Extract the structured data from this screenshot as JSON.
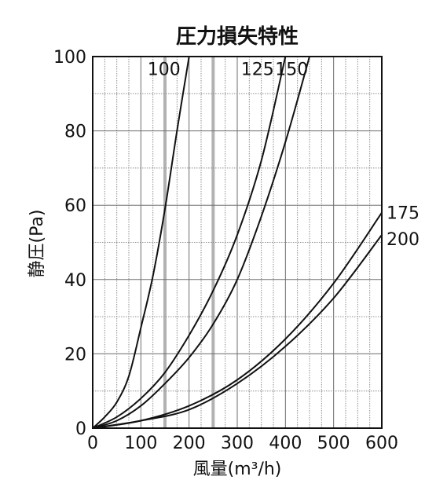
{
  "chart_data": {
    "type": "line",
    "title": "圧力損失特性",
    "xlabel": "風量(m³/h)",
    "ylabel": "静圧(Pa)",
    "xlim": [
      0,
      600
    ],
    "ylim": [
      0,
      100
    ],
    "xticks": [
      "0",
      "100",
      "200",
      "300",
      "400",
      "500",
      "600"
    ],
    "yticks": [
      "0",
      "20",
      "40",
      "60",
      "80",
      "100"
    ],
    "grid": true,
    "series": [
      {
        "name": "100",
        "x": [
          0,
          25,
          50,
          75,
          100,
          125,
          150,
          175,
          200
        ],
        "y": [
          0,
          3,
          7,
          14,
          27,
          41,
          59,
          80,
          100
        ]
      },
      {
        "name": "125",
        "x": [
          0,
          50,
          100,
          150,
          200,
          250,
          300,
          350,
          400
        ],
        "y": [
          0,
          3,
          8,
          15,
          25,
          37,
          52,
          72,
          100
        ]
      },
      {
        "name": "150",
        "x": [
          0,
          50,
          100,
          150,
          200,
          250,
          300,
          350,
          400,
          450
        ],
        "y": [
          0,
          2,
          6,
          12,
          19,
          28,
          40,
          57,
          77,
          100
        ]
      },
      {
        "name": "175",
        "x": [
          0,
          100,
          200,
          300,
          400,
          500,
          600
        ],
        "y": [
          0,
          2,
          6,
          13,
          24,
          39,
          58
        ]
      },
      {
        "name": "200",
        "x": [
          0,
          100,
          200,
          300,
          400,
          500,
          600
        ],
        "y": [
          0,
          2,
          5,
          12,
          22,
          35,
          52
        ]
      }
    ]
  }
}
